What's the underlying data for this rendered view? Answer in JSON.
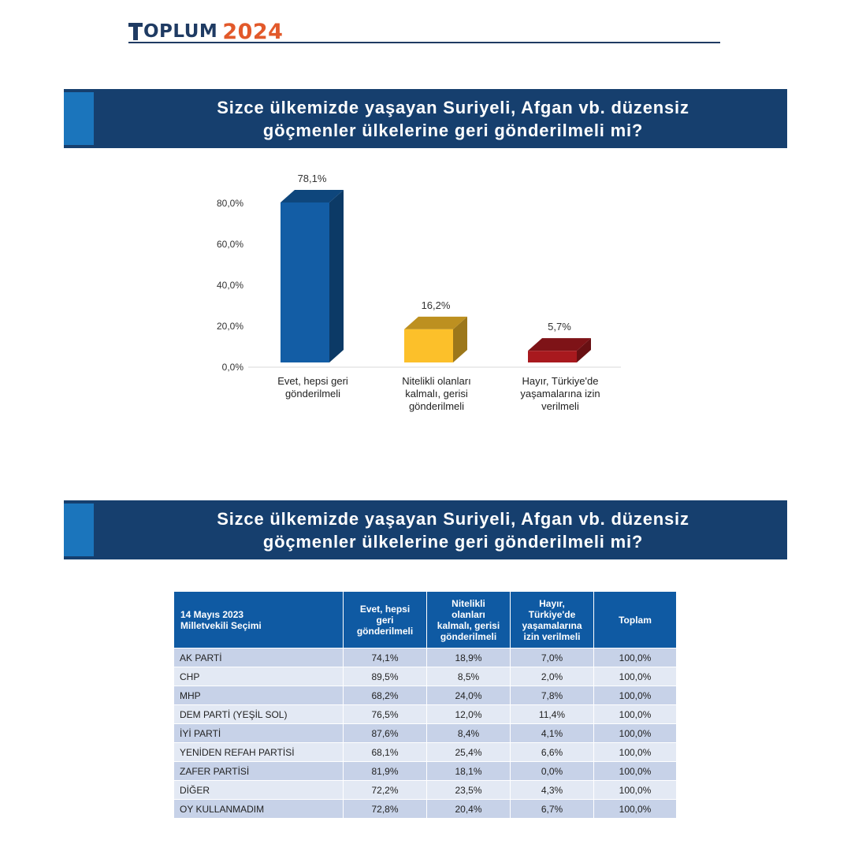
{
  "header": {
    "brand": "OPLUM",
    "year": "2024"
  },
  "banner_top": {
    "line1": "Sizce ülkemizde yaşayan Suriyeli, Afgan vb. düzensiz",
    "line2": "göçmenler ülkelerine geri gönderilmeli mi?"
  },
  "banner_bottom": {
    "line1": "Sizce ülkemizde yaşayan Suriyeli, Afgan vb. düzensiz",
    "line2": "göçmenler ülkelerine geri gönderilmeli mi?"
  },
  "colors": {
    "banner": "#163f6e",
    "accent": "#1b75bc",
    "bar_blue": "#135da5",
    "bar_yellow": "#fcc02a",
    "bar_red": "#a8191e",
    "table_header": "#0f5aa3"
  },
  "chart_data": {
    "type": "bar",
    "title": "Sizce ülkemizde yaşayan Suriyeli, Afgan vb. düzensiz göçmenler ülkelerine geri gönderilmeli mi?",
    "categories": [
      [
        "Evet, hepsi geri",
        "gönderilmeli"
      ],
      [
        "Nitelikli olanları",
        "kalmalı, gerisi",
        "gönderilmeli"
      ],
      [
        "Hayır, Türkiye'de",
        "yaşamalarına izin",
        "verilmeli"
      ]
    ],
    "values": [
      78.1,
      16.2,
      5.7
    ],
    "value_labels": [
      "78,1%",
      "16,2%",
      "5,7%"
    ],
    "bar_colors": [
      "#135da5",
      "#fcc02a",
      "#a8191e"
    ],
    "yticks": [
      0,
      20,
      40,
      60,
      80
    ],
    "ytick_labels": [
      "0,0%",
      "20,0%",
      "40,0%",
      "60,0%",
      "80,0%"
    ],
    "ylim": [
      0,
      80
    ],
    "xlabel": "",
    "ylabel": ""
  },
  "table": {
    "header_line1": "14 Mayıs 2023",
    "header_line2": "Milletvekili Seçimi",
    "columns": [
      [
        "Evet, hepsi",
        "geri",
        "gönderilmeli"
      ],
      [
        "Nitelikli",
        "olanları",
        "kalmalı, gerisi",
        "gönderilmeli"
      ],
      [
        "Hayır,",
        "Türkiye'de",
        "yaşamalarına",
        "izin verilmeli"
      ],
      [
        "Toplam"
      ]
    ],
    "rows": [
      {
        "party": "AK PARTİ",
        "evet": "74,1%",
        "nitelikli": "18,9%",
        "hayir": "7,0%",
        "toplam": "100,0%"
      },
      {
        "party": "CHP",
        "evet": "89,5%",
        "nitelikli": "8,5%",
        "hayir": "2,0%",
        "toplam": "100,0%"
      },
      {
        "party": "MHP",
        "evet": "68,2%",
        "nitelikli": "24,0%",
        "hayir": "7,8%",
        "toplam": "100,0%"
      },
      {
        "party": "DEM PARTİ (YEŞİL SOL)",
        "evet": "76,5%",
        "nitelikli": "12,0%",
        "hayir": "11,4%",
        "toplam": "100,0%"
      },
      {
        "party": "İYİ PARTİ",
        "evet": "87,6%",
        "nitelikli": "8,4%",
        "hayir": "4,1%",
        "toplam": "100,0%"
      },
      {
        "party": "YENİDEN REFAH PARTİSİ",
        "evet": "68,1%",
        "nitelikli": "25,4%",
        "hayir": "6,6%",
        "toplam": "100,0%"
      },
      {
        "party": "ZAFER PARTİSİ",
        "evet": "81,9%",
        "nitelikli": "18,1%",
        "hayir": "0,0%",
        "toplam": "100,0%"
      },
      {
        "party": "DİĞER",
        "evet": "72,2%",
        "nitelikli": "23,5%",
        "hayir": "4,3%",
        "toplam": "100,0%"
      },
      {
        "party": "OY KULLANMADIM",
        "evet": "72,8%",
        "nitelikli": "20,4%",
        "hayir": "6,7%",
        "toplam": "100,0%"
      }
    ]
  }
}
